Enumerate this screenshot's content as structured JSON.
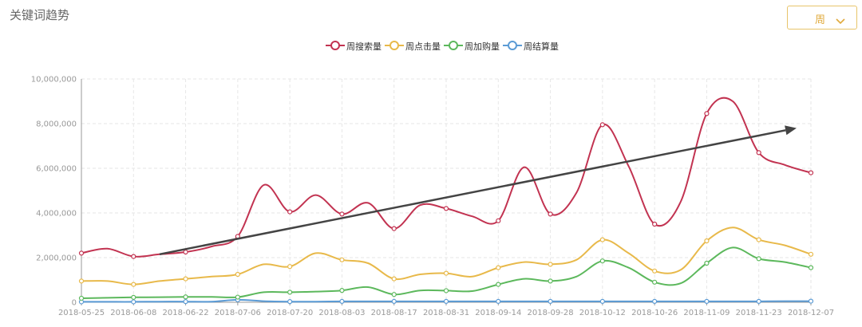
{
  "page": {
    "title": "关键词趋势",
    "period_select": {
      "value": "周",
      "icon": "chevron-down-icon"
    }
  },
  "legend": [
    {
      "label": "周搜索量",
      "color": "#c23351"
    },
    {
      "label": "周点击量",
      "color": "#e8b94a"
    },
    {
      "label": "周加购量",
      "color": "#5cb85c"
    },
    {
      "label": "周结算量",
      "color": "#5b9bd5"
    }
  ],
  "chart_data": {
    "type": "line",
    "smooth": true,
    "grid": true,
    "legend_position": "top-center",
    "ylim": [
      0,
      10000000
    ],
    "y_ticks": [
      "0",
      "2,000,000",
      "4,000,000",
      "6,000,000",
      "8,000,000",
      "10,000,000"
    ],
    "x": [
      "2018-05-25",
      "2018-06-01",
      "2018-06-08",
      "2018-06-15",
      "2018-06-22",
      "2018-06-29",
      "2018-07-06",
      "2018-07-13",
      "2018-07-20",
      "2018-07-27",
      "2018-08-03",
      "2018-08-10",
      "2018-08-17",
      "2018-08-24",
      "2018-08-31",
      "2018-09-07",
      "2018-09-14",
      "2018-09-21",
      "2018-09-28",
      "2018-10-05",
      "2018-10-12",
      "2018-10-19",
      "2018-10-26",
      "2018-11-02",
      "2018-11-09",
      "2018-11-16",
      "2018-11-23",
      "2018-11-30",
      "2018-12-07"
    ],
    "x_tick_labels": [
      "2018-05-25",
      "2018-06-08",
      "2018-06-22",
      "2018-07-06",
      "2018-07-20",
      "2018-08-03",
      "2018-08-17",
      "2018-08-31",
      "2018-09-14",
      "2018-09-28",
      "2018-10-12",
      "2018-10-26",
      "2018-11-09",
      "2018-11-23",
      "2018-12-07"
    ],
    "series": [
      {
        "name": "周搜索量",
        "color": "#c23351",
        "values": [
          2200000,
          2400000,
          2050000,
          2150000,
          2250000,
          2500000,
          2950000,
          5250000,
          4050000,
          4800000,
          3950000,
          4450000,
          3300000,
          4350000,
          4200000,
          3850000,
          3650000,
          6050000,
          3950000,
          4900000,
          7950000,
          6100000,
          3500000,
          4500000,
          8450000,
          9000000,
          6700000,
          6150000,
          5800000
        ]
      },
      {
        "name": "周点击量",
        "color": "#e8b94a",
        "values": [
          950000,
          950000,
          800000,
          950000,
          1050000,
          1150000,
          1250000,
          1700000,
          1600000,
          2200000,
          1900000,
          1750000,
          1050000,
          1250000,
          1300000,
          1150000,
          1550000,
          1800000,
          1700000,
          1900000,
          2800000,
          2200000,
          1400000,
          1450000,
          2750000,
          3350000,
          2800000,
          2550000,
          2150000
        ]
      },
      {
        "name": "周加购量",
        "color": "#5cb85c",
        "values": [
          180000,
          200000,
          220000,
          230000,
          240000,
          240000,
          230000,
          450000,
          450000,
          480000,
          530000,
          680000,
          350000,
          530000,
          520000,
          500000,
          800000,
          1050000,
          950000,
          1150000,
          1850000,
          1550000,
          900000,
          850000,
          1750000,
          2450000,
          1950000,
          1800000,
          1550000
        ]
      },
      {
        "name": "周结算量",
        "color": "#5b9bd5",
        "values": [
          20000,
          20000,
          20000,
          30000,
          30000,
          30000,
          110000,
          50000,
          30000,
          30000,
          40000,
          40000,
          40000,
          40000,
          40000,
          40000,
          40000,
          40000,
          40000,
          40000,
          40000,
          40000,
          40000,
          40000,
          40000,
          40000,
          40000,
          50000,
          50000
        ]
      }
    ]
  },
  "annotation": {
    "type": "trend-arrow",
    "from": {
      "x": "2018-06-15",
      "y": 2150000
    },
    "to": {
      "x": "2018-12-07",
      "y": 7800000
    },
    "color": "#444444"
  }
}
